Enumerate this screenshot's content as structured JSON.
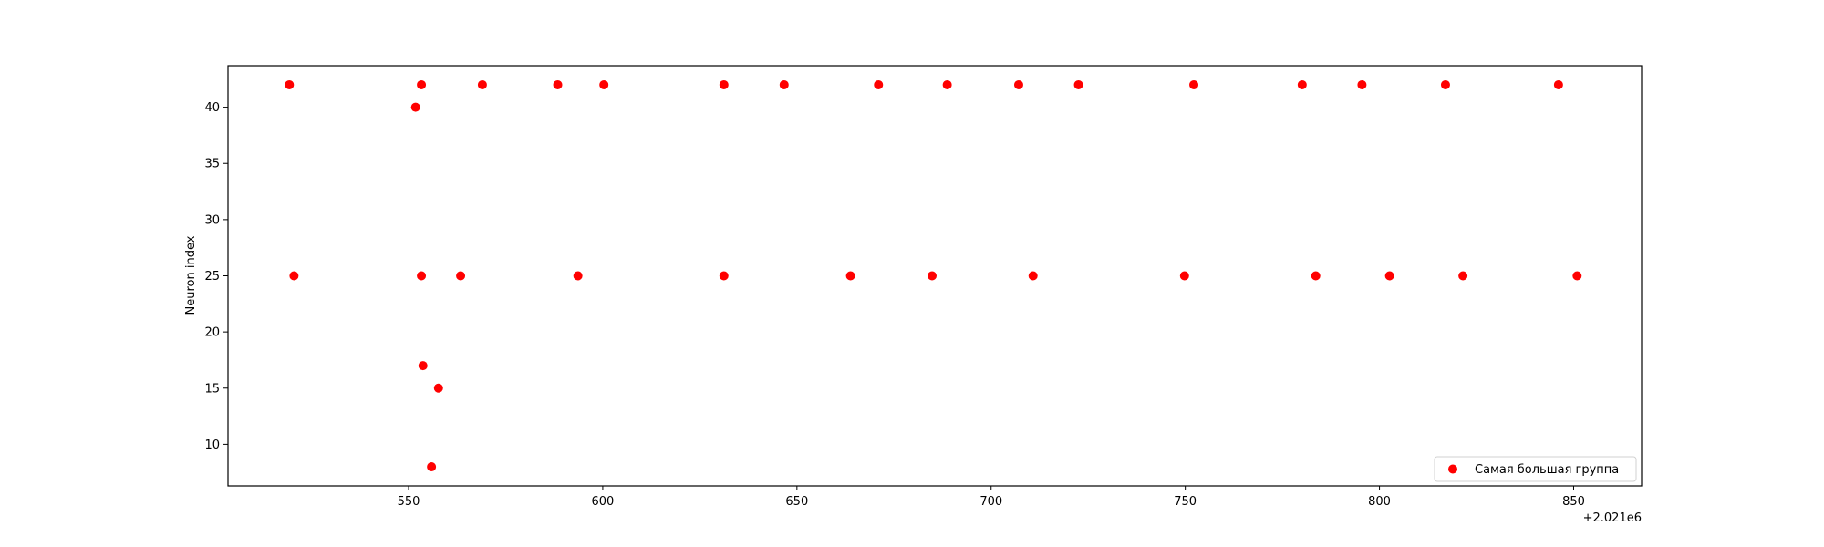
{
  "chart_data": {
    "type": "scatter",
    "title": "",
    "xlabel": "",
    "ylabel": "Neuron index",
    "x_offset_label": "+2.021e6",
    "x_ticks": [
      550,
      600,
      650,
      700,
      750,
      800,
      850
    ],
    "x_tick_labels": [
      "550",
      "600",
      "650",
      "700",
      "750",
      "800",
      "850"
    ],
    "y_ticks": [
      10,
      15,
      20,
      25,
      30,
      35,
      40
    ],
    "y_tick_labels": [
      "10",
      "15",
      "20",
      "25",
      "30",
      "35",
      "40"
    ],
    "xlim": [
      503.5,
      867.5
    ],
    "ylim": [
      6.3,
      43.7
    ],
    "grid": false,
    "legend": {
      "position": "bottom-right",
      "entries": [
        "Самая большая группа"
      ]
    },
    "series": [
      {
        "name": "Самая большая группа",
        "color": "#ff0000",
        "points": [
          {
            "x": 519.3,
            "y": 42
          },
          {
            "x": 553.3,
            "y": 42
          },
          {
            "x": 569.0,
            "y": 42
          },
          {
            "x": 588.4,
            "y": 42
          },
          {
            "x": 600.3,
            "y": 42
          },
          {
            "x": 631.2,
            "y": 42
          },
          {
            "x": 646.7,
            "y": 42
          },
          {
            "x": 671.0,
            "y": 42
          },
          {
            "x": 688.7,
            "y": 42
          },
          {
            "x": 707.1,
            "y": 42
          },
          {
            "x": 722.5,
            "y": 42
          },
          {
            "x": 752.2,
            "y": 42
          },
          {
            "x": 780.1,
            "y": 42
          },
          {
            "x": 795.5,
            "y": 42
          },
          {
            "x": 817.0,
            "y": 42
          },
          {
            "x": 846.1,
            "y": 42
          },
          {
            "x": 551.8,
            "y": 40
          },
          {
            "x": 520.5,
            "y": 25
          },
          {
            "x": 553.3,
            "y": 25
          },
          {
            "x": 563.4,
            "y": 25
          },
          {
            "x": 593.6,
            "y": 25
          },
          {
            "x": 631.2,
            "y": 25
          },
          {
            "x": 663.8,
            "y": 25
          },
          {
            "x": 684.8,
            "y": 25
          },
          {
            "x": 710.8,
            "y": 25
          },
          {
            "x": 749.8,
            "y": 25
          },
          {
            "x": 783.6,
            "y": 25
          },
          {
            "x": 802.6,
            "y": 25
          },
          {
            "x": 821.5,
            "y": 25
          },
          {
            "x": 850.9,
            "y": 25
          },
          {
            "x": 553.7,
            "y": 17
          },
          {
            "x": 557.7,
            "y": 15
          },
          {
            "x": 555.9,
            "y": 8
          }
        ]
      }
    ]
  }
}
